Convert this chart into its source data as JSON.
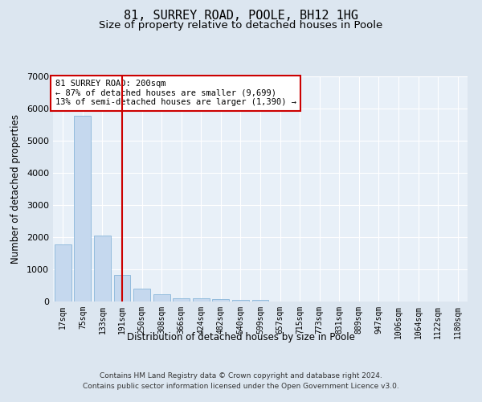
{
  "title": "81, SURREY ROAD, POOLE, BH12 1HG",
  "subtitle": "Size of property relative to detached houses in Poole",
  "xlabel": "Distribution of detached houses by size in Poole",
  "ylabel": "Number of detached properties",
  "categories": [
    "17sqm",
    "75sqm",
    "133sqm",
    "191sqm",
    "250sqm",
    "308sqm",
    "366sqm",
    "424sqm",
    "482sqm",
    "540sqm",
    "599sqm",
    "657sqm",
    "715sqm",
    "773sqm",
    "831sqm",
    "889sqm",
    "947sqm",
    "1006sqm",
    "1064sqm",
    "1122sqm",
    "1180sqm"
  ],
  "values": [
    1780,
    5770,
    2060,
    830,
    390,
    230,
    110,
    110,
    70,
    60,
    60,
    0,
    0,
    0,
    0,
    0,
    0,
    0,
    0,
    0,
    0
  ],
  "bar_color": "#c5d8ee",
  "bar_edge_color": "#7aadd4",
  "vline_x_index": 3,
  "vline_color": "#cc0000",
  "annotation_text": "81 SURREY ROAD: 200sqm\n← 87% of detached houses are smaller (9,699)\n13% of semi-detached houses are larger (1,390) →",
  "annotation_box_color": "#ffffff",
  "annotation_box_edge_color": "#cc0000",
  "ylim": [
    0,
    7000
  ],
  "yticks": [
    0,
    1000,
    2000,
    3000,
    4000,
    5000,
    6000,
    7000
  ],
  "bg_color": "#dce6f0",
  "plot_bg_color": "#e8f0f8",
  "footer_line1": "Contains HM Land Registry data © Crown copyright and database right 2024.",
  "footer_line2": "Contains public sector information licensed under the Open Government Licence v3.0.",
  "title_fontsize": 11,
  "subtitle_fontsize": 9.5,
  "tick_fontsize": 7,
  "label_fontsize": 8.5
}
